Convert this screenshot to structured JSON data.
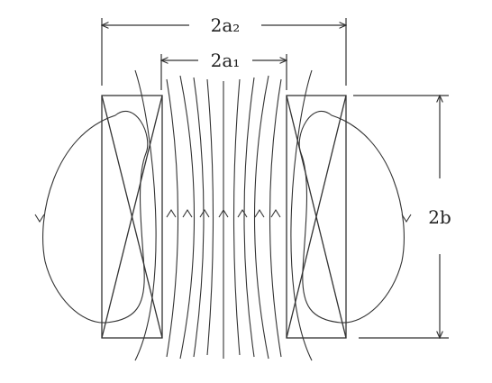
{
  "labels": {
    "outer_diameter": "2a₂",
    "inner_diameter": "2a₁",
    "height": "2b"
  }
}
